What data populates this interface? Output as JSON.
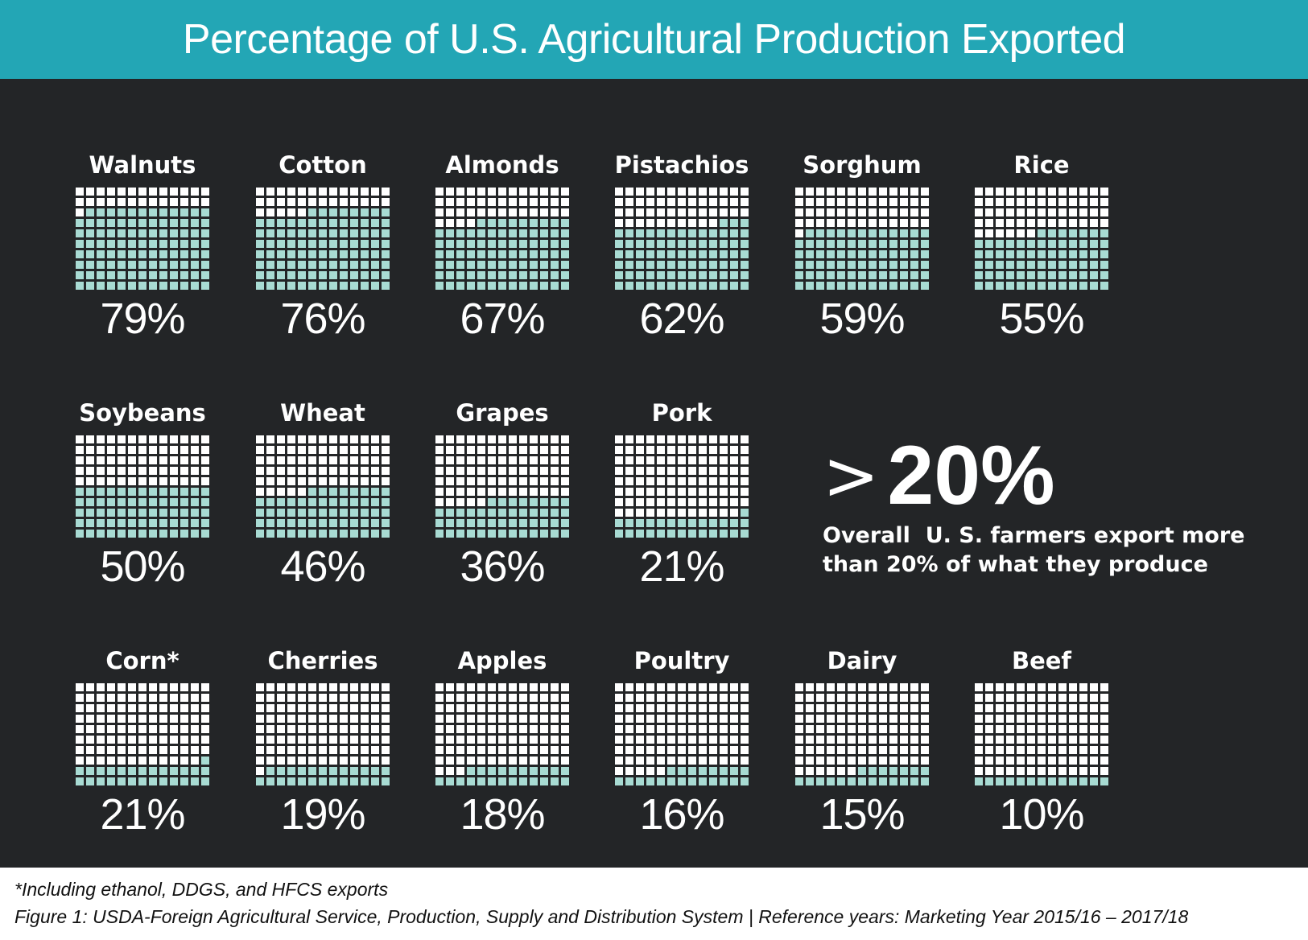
{
  "header": {
    "title": "Percentage of U.S. Agricultural Production Exported"
  },
  "colors": {
    "header_bg": "#23a6b5",
    "panel_bg": "#232527",
    "filled": "#a8dbd3",
    "empty": "#ffffff"
  },
  "chart_data": {
    "type": "waffle",
    "title": "Percentage of U.S. Agricultural Production Exported",
    "grid": {
      "columns": 13,
      "rows": 10
    },
    "items": [
      {
        "name": "Walnuts",
        "label": "79%",
        "value": 79
      },
      {
        "name": "Cotton",
        "label": "76%",
        "value": 76
      },
      {
        "name": "Almonds",
        "label": "67%",
        "value": 67
      },
      {
        "name": "Pistachios",
        "label": "62%",
        "value": 62
      },
      {
        "name": "Sorghum",
        "label": "59%",
        "value": 59
      },
      {
        "name": "Rice",
        "label": "55%",
        "value": 55
      },
      {
        "name": "Soybeans",
        "label": "50%",
        "value": 50
      },
      {
        "name": "Wheat",
        "label": "46%",
        "value": 46
      },
      {
        "name": "Grapes",
        "label": "36%",
        "value": 36
      },
      {
        "name": "Pork",
        "label": "21%",
        "value": 21
      },
      {
        "name": "Corn*",
        "label": "21%",
        "value": 21
      },
      {
        "name": "Cherries",
        "label": "19%",
        "value": 19
      },
      {
        "name": "Apples",
        "label": "18%",
        "value": 18
      },
      {
        "name": "Poultry",
        "label": "16%",
        "value": 16
      },
      {
        "name": "Dairy",
        "label": "15%",
        "value": 15
      },
      {
        "name": "Beef",
        "label": "10%",
        "value": 10
      }
    ]
  },
  "overall": {
    "symbol": ">",
    "value_label": "20%",
    "text_line1": "Overall  U. S. farmers export more",
    "text_line2": "than 20% of what they produce"
  },
  "footnotes": {
    "note": "*Including ethanol, DDGS, and HFCS exports",
    "source": "Figure 1: USDA-Foreign Agricultural Service, Production, Supply and Distribution System | Reference years: Marketing Year 2015/16 – 2017/18"
  }
}
